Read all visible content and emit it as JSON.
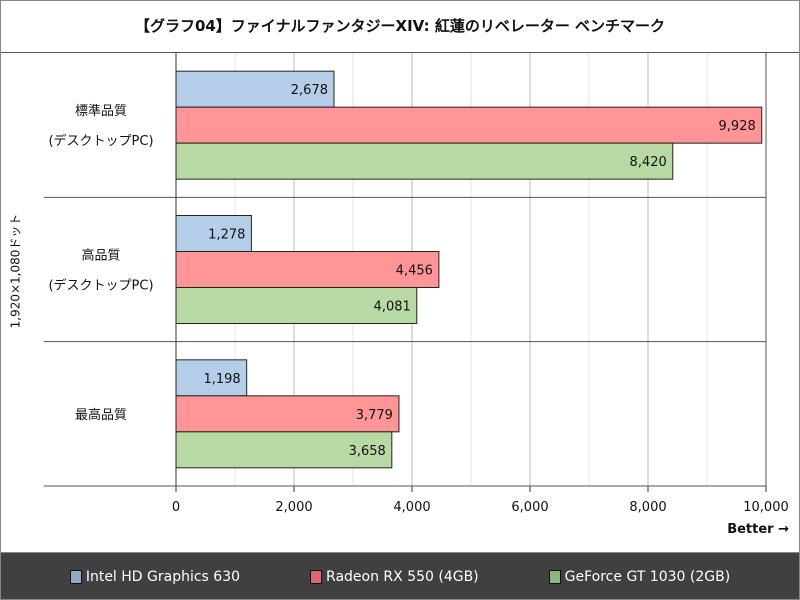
{
  "chart_data": {
    "type": "bar",
    "orientation": "horizontal",
    "title": "【グラフ04】ファイナルファンタジーXIV: 紅蓮のリベレーター ベンチマーク",
    "ylabel": "1,920×1,080ドット",
    "xlabel": "Better →",
    "categories": [
      [
        "標準品質",
        "(デスクトップPC)"
      ],
      [
        "高品質",
        "(デスクトップPC)"
      ],
      [
        "最高品質"
      ]
    ],
    "series": [
      {
        "name": "Intel HD Graphics 630",
        "color": "#b4cde8",
        "legend_color": "#8fa9c8",
        "values": [
          2678,
          1278,
          1198
        ],
        "labels": [
          "2,678",
          "1,278",
          "1,198"
        ]
      },
      {
        "name": "Radeon RX 550 (4GB)",
        "color": "#ff9597",
        "legend_color": "#d9696c",
        "values": [
          9928,
          4456,
          3779
        ],
        "labels": [
          "9,928",
          "4,456",
          "3,779"
        ]
      },
      {
        "name": "GeForce GT 1030 (2GB)",
        "color": "#b9d9a4",
        "legend_color": "#8fb480",
        "values": [
          8420,
          4081,
          3658
        ],
        "labels": [
          "8,420",
          "4,081",
          "3,658"
        ]
      }
    ],
    "xlim": [
      0,
      10000
    ],
    "xticks": [
      0,
      2000,
      4000,
      6000,
      8000,
      10000
    ],
    "xtick_labels": [
      "0",
      "2,000",
      "4,000",
      "6,000",
      "8,000",
      "10,000"
    ],
    "grid": true,
    "legend": "bottom"
  }
}
